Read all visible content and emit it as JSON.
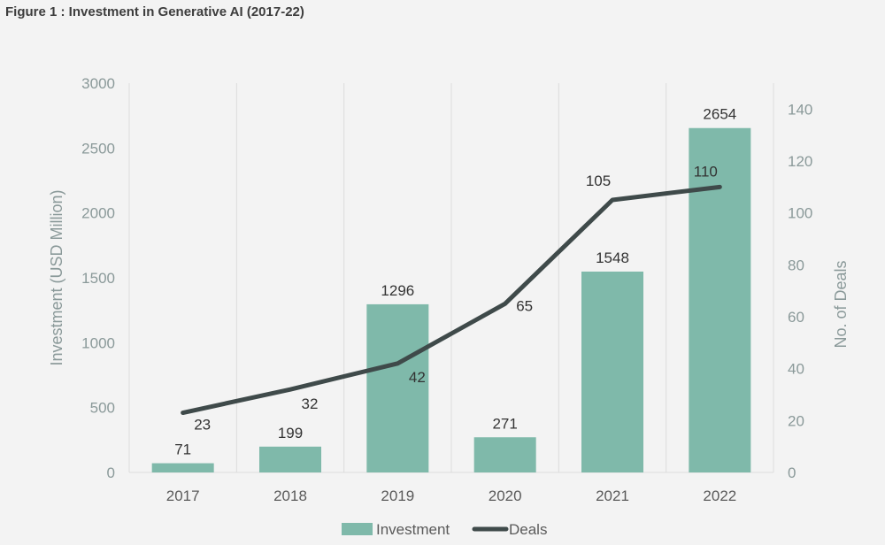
{
  "figure_title": "Figure 1 : Investment in Generative AI (2017-22)",
  "colors": {
    "bar": "#7fb9aa",
    "line": "#3f4a4a",
    "grid": "#dcdcdc",
    "background": "#f3f3f3"
  },
  "chart_data": {
    "type": "bar",
    "title": "Figure 1 : Investment in Generative AI (2017-22)",
    "categories": [
      "2017",
      "2018",
      "2019",
      "2020",
      "2021",
      "2022"
    ],
    "series": [
      {
        "name": "Investment",
        "type": "bar",
        "axis": "left",
        "values": [
          71,
          199,
          1296,
          271,
          1548,
          2654
        ]
      },
      {
        "name": "Deals",
        "type": "line",
        "axis": "right",
        "values": [
          23,
          32,
          42,
          65,
          105,
          110
        ]
      }
    ],
    "ylabel": "Investment (USD Million)",
    "ylim": [
      0,
      3000
    ],
    "yticks": [
      "0",
      "500",
      "1000",
      "1500",
      "2000",
      "2500",
      "3000"
    ],
    "y2label": "No. of Deals",
    "y2lim": [
      0,
      150
    ],
    "y2ticks": [
      "0",
      "20",
      "40",
      "60",
      "80",
      "100",
      "120",
      "140"
    ],
    "grid": "vertical",
    "legend": [
      "Investment",
      "Deals"
    ],
    "legend_position": "bottom"
  }
}
